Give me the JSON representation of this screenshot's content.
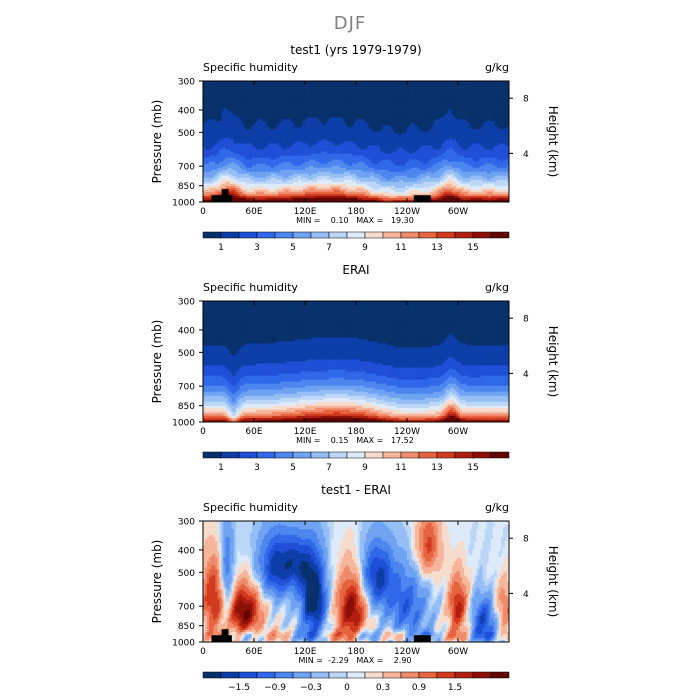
{
  "figure_title": "DJF",
  "chart_data": [
    {
      "type": "heatmap",
      "title": "test1 (yrs 1979-1979)",
      "left_label": "Specific humidity",
      "right_label": "g/kg",
      "ylabel": "Pressure (mb)",
      "ylabel_right": "Height (km)",
      "x_ticks": [
        "0",
        "60E",
        "120E",
        "180",
        "120W",
        "60W"
      ],
      "x_tick_values": [
        0,
        60,
        120,
        180,
        240,
        300
      ],
      "x_range": [
        0,
        360
      ],
      "y_ticks": [
        "300",
        "400",
        "500",
        "700",
        "850",
        "1000"
      ],
      "y_tick_values": [
        300,
        400,
        500,
        700,
        850,
        1000
      ],
      "y_range": [
        300,
        1000
      ],
      "height_ticks": [
        "8",
        "4"
      ],
      "height_tick_values": [
        8,
        4
      ],
      "stats_text": "MIN =    0.10   MAX =   19.30",
      "min": 0.1,
      "max": 19.3,
      "colorbar_labels": [
        "1",
        "3",
        "5",
        "7",
        "9",
        "11",
        "13",
        "15"
      ],
      "levels": [
        0.5,
        1,
        2,
        3,
        4,
        5,
        6,
        7,
        8,
        9,
        10,
        11,
        12,
        13,
        14,
        15,
        16
      ],
      "colors": [
        "#08306b",
        "#0d3ea8",
        "#1e4fd6",
        "#2f68e8",
        "#4d86ee",
        "#6fa3f2",
        "#95bef5",
        "#bcd6f8",
        "#ddeafa",
        "#f6dccd",
        "#f6b69b",
        "#f08c6c",
        "#e5643f",
        "#d03a1f",
        "#b01e10",
        "#8c1008",
        "#620400"
      ],
      "field": "moisture",
      "masks": [
        [
          10,
          34,
          935,
          1000
        ],
        [
          22,
          30,
          880,
          1000
        ],
        [
          248,
          268,
          935,
          1000
        ]
      ],
      "vmin": 0,
      "vmax": 16
    },
    {
      "type": "heatmap",
      "title": "ERAI",
      "left_label": "Specific humidity",
      "right_label": "g/kg",
      "ylabel": "Pressure (mb)",
      "ylabel_right": "Height (km)",
      "x_ticks": [
        "0",
        "60E",
        "120E",
        "180",
        "120W",
        "60W"
      ],
      "x_tick_values": [
        0,
        60,
        120,
        180,
        240,
        300
      ],
      "x_range": [
        0,
        360
      ],
      "y_ticks": [
        "300",
        "400",
        "500",
        "700",
        "850",
        "1000"
      ],
      "y_tick_values": [
        300,
        400,
        500,
        700,
        850,
        1000
      ],
      "y_range": [
        300,
        1000
      ],
      "height_ticks": [
        "8",
        "4"
      ],
      "height_tick_values": [
        8,
        4
      ],
      "stats_text": "MIN =    0.15   MAX =   17.52",
      "min": 0.15,
      "max": 17.52,
      "colorbar_labels": [
        "1",
        "3",
        "5",
        "7",
        "9",
        "11",
        "13",
        "15"
      ],
      "levels": [
        0.5,
        1,
        2,
        3,
        4,
        5,
        6,
        7,
        8,
        9,
        10,
        11,
        12,
        13,
        14,
        15,
        16
      ],
      "colors": [
        "#08306b",
        "#0d3ea8",
        "#1e4fd6",
        "#2f68e8",
        "#4d86ee",
        "#6fa3f2",
        "#95bef5",
        "#bcd6f8",
        "#ddeafa",
        "#f6dccd",
        "#f6b69b",
        "#f08c6c",
        "#e5643f",
        "#d03a1f",
        "#b01e10",
        "#8c1008",
        "#620400"
      ],
      "field": "moisture_erai",
      "masks": [],
      "vmin": 0,
      "vmax": 16
    },
    {
      "type": "heatmap",
      "title": "test1 - ERAI",
      "left_label": "Specific humidity",
      "right_label": "g/kg",
      "ylabel": "Pressure (mb)",
      "ylabel_right": "Height (km)",
      "x_ticks": [
        "0",
        "60E",
        "120E",
        "180",
        "120W",
        "60W"
      ],
      "x_tick_values": [
        0,
        60,
        120,
        180,
        240,
        300
      ],
      "x_range": [
        0,
        360
      ],
      "y_ticks": [
        "300",
        "400",
        "500",
        "700",
        "850",
        "1000"
      ],
      "y_tick_values": [
        300,
        400,
        500,
        700,
        850,
        1000
      ],
      "y_range": [
        300,
        1000
      ],
      "height_ticks": [
        "8",
        "4"
      ],
      "height_tick_values": [
        8,
        4
      ],
      "stats_text": "MIN =  -2.29   MAX =    2.90",
      "min": -2.29,
      "max": 2.9,
      "colorbar_labels": [
        "−1.5",
        "−0.9",
        "−0.3",
        "0",
        "0.3",
        "0.9",
        "1.5"
      ],
      "levels": [
        -2.1,
        -1.8,
        -1.5,
        -1.2,
        -0.9,
        -0.6,
        -0.3,
        -0.1,
        0,
        0.1,
        0.3,
        0.6,
        0.9,
        1.2,
        1.5,
        1.8,
        2.1
      ],
      "colors": [
        "#08306b",
        "#0d3ea8",
        "#1e4fd6",
        "#2f68e8",
        "#4d86ee",
        "#6fa3f2",
        "#95bef5",
        "#bcd6f8",
        "#ddeafa",
        "#f6dccd",
        "#f6b69b",
        "#f08c6c",
        "#e5643f",
        "#d03a1f",
        "#b01e10",
        "#8c1008",
        "#620400"
      ],
      "field": "difference",
      "masks": [
        [
          10,
          34,
          935,
          1000
        ],
        [
          22,
          30,
          880,
          1000
        ],
        [
          248,
          268,
          935,
          1000
        ]
      ],
      "vmin": -2.4,
      "vmax": 2.4
    }
  ]
}
